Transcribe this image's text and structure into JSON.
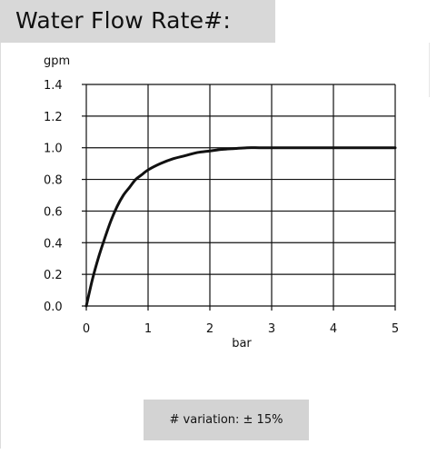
{
  "header": {
    "title": "Water Flow Rate#:"
  },
  "footnote": {
    "text": "# variation: ± 15%"
  },
  "chart_data": {
    "type": "line",
    "title": "Water Flow Rate#:",
    "xlabel": "bar",
    "ylabel": "gpm",
    "xlim": [
      0,
      5
    ],
    "ylim": [
      0,
      1.4
    ],
    "x_ticks": [
      "0",
      "1",
      "2",
      "3",
      "4",
      "5"
    ],
    "y_ticks": [
      "0.0",
      "0.2",
      "0.4",
      "0.6",
      "0.8",
      "1.0",
      "1.2",
      "1.4"
    ],
    "grid": true,
    "series": [
      {
        "x": [
          0,
          0.1,
          0.2,
          0.3,
          0.4,
          0.5,
          0.6,
          0.7,
          0.8,
          0.9,
          1.0,
          1.2,
          1.4,
          1.6,
          1.8,
          2.0,
          2.2,
          2.4,
          2.6,
          2.8,
          3.0,
          3.5,
          4.0,
          4.5,
          5.0
        ],
        "y": [
          0.0,
          0.17,
          0.31,
          0.43,
          0.54,
          0.63,
          0.7,
          0.75,
          0.8,
          0.83,
          0.86,
          0.9,
          0.93,
          0.95,
          0.97,
          0.98,
          0.99,
          0.995,
          1.0,
          1.0,
          1.0,
          1.0,
          1.0,
          1.0,
          1.0
        ]
      }
    ],
    "colors": {
      "line": "#111111",
      "grid": "#111111"
    }
  }
}
